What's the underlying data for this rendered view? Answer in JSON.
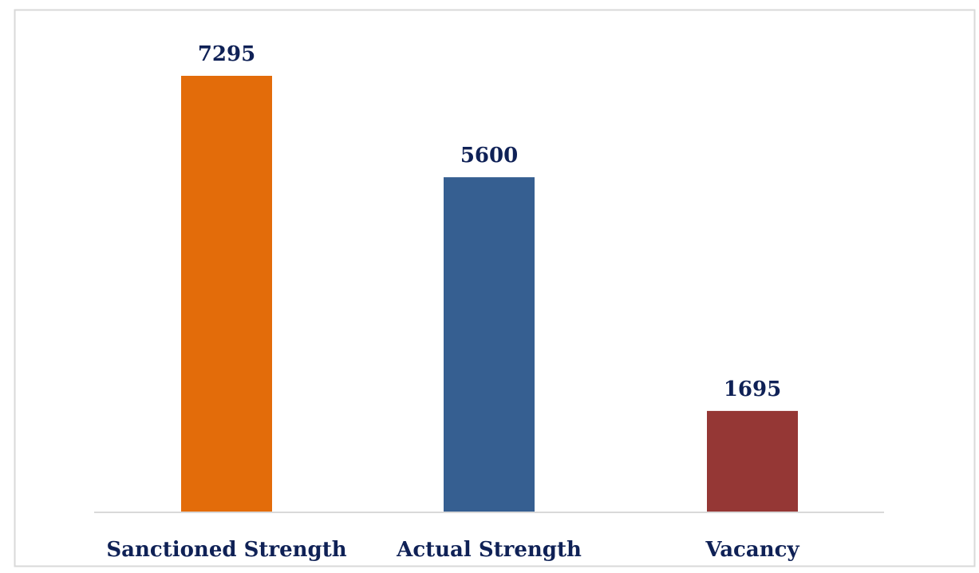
{
  "chart_data": {
    "type": "bar",
    "title": "",
    "xlabel": "",
    "ylabel": "",
    "categories": [
      "Sanctioned Strength",
      "Actual Strength",
      "Vacancy"
    ],
    "values": [
      7295,
      5600,
      1695
    ],
    "data_labels": [
      "7295",
      "5600",
      "1695"
    ],
    "ylim": [
      0,
      7295
    ],
    "grid": false,
    "legend": "none",
    "colors": [
      "#E36C0A",
      "#365F91",
      "#953735"
    ],
    "label_color": "#0F2156",
    "axis_color": "#D9D9D9",
    "border_color": "#D9D9D9"
  }
}
